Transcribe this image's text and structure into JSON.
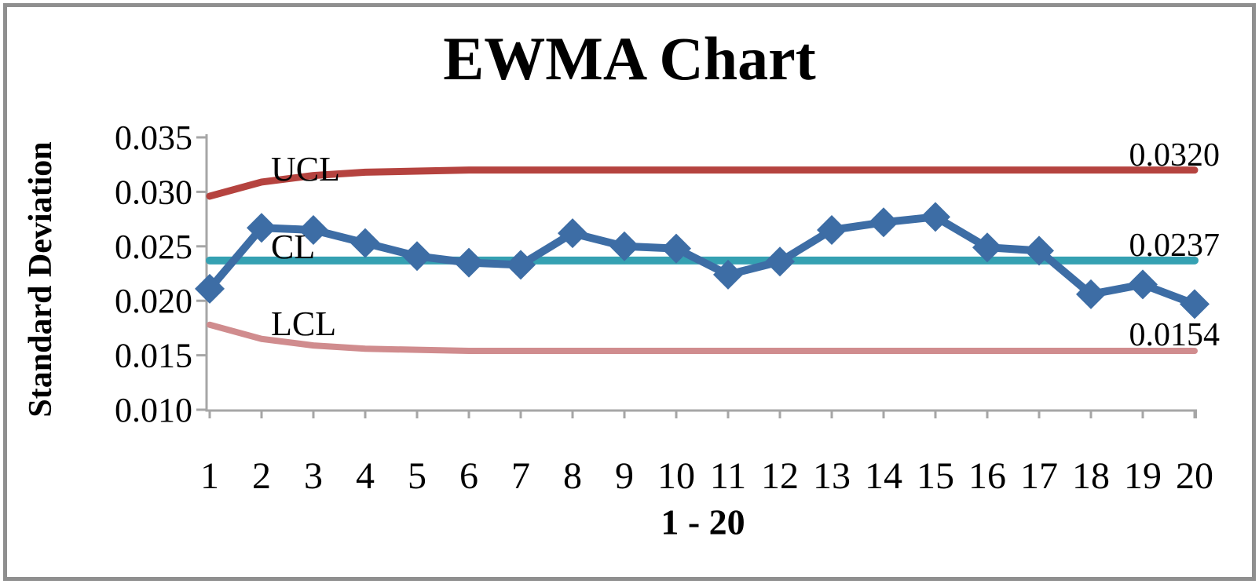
{
  "window": {
    "background_color": "#ffffff",
    "border_color": "#8f8f8f"
  },
  "chart_data": {
    "type": "line",
    "title": "EWMA Chart",
    "ylabel": "Standard Deviation",
    "xlabel": "1 - 20",
    "ylim": [
      0.01,
      0.035
    ],
    "y_tick_labels": [
      "0.035",
      "0.030",
      "0.025",
      "0.020",
      "0.015",
      "0.010"
    ],
    "y_tick_values": [
      0.035,
      0.03,
      0.025,
      0.02,
      0.015,
      0.01
    ],
    "categories": [
      1,
      2,
      3,
      4,
      5,
      6,
      7,
      8,
      9,
      10,
      11,
      12,
      13,
      14,
      15,
      16,
      17,
      18,
      19,
      20
    ],
    "x_tick_labels": [
      "1",
      "2",
      "3",
      "4",
      "5",
      "6",
      "7",
      "8",
      "9",
      "10",
      "11",
      "12",
      "13",
      "14",
      "15",
      "16",
      "17",
      "18",
      "19",
      "20"
    ],
    "grid": false,
    "legend": "none",
    "series": [
      {
        "name": "EWMA",
        "marker": "diamond",
        "color": "#3D6DA5",
        "values": [
          0.0211,
          0.0267,
          0.0265,
          0.0253,
          0.0241,
          0.0235,
          0.0233,
          0.0262,
          0.025,
          0.0248,
          0.0224,
          0.0236,
          0.0265,
          0.0272,
          0.0277,
          0.0249,
          0.0246,
          0.0206,
          0.0215,
          0.0197
        ]
      },
      {
        "name": "UCL",
        "marker": "none",
        "color": "#B5433F",
        "values": [
          0.0296,
          0.0309,
          0.0315,
          0.0318,
          0.0319,
          0.032,
          0.032,
          0.032,
          0.032,
          0.032,
          0.032,
          0.032,
          0.032,
          0.032,
          0.032,
          0.032,
          0.032,
          0.032,
          0.032,
          0.032
        ]
      },
      {
        "name": "CL",
        "marker": "none",
        "color": "#35A1B2",
        "values": [
          0.0237,
          0.0237,
          0.0237,
          0.0237,
          0.0237,
          0.0237,
          0.0237,
          0.0237,
          0.0237,
          0.0237,
          0.0237,
          0.0237,
          0.0237,
          0.0237,
          0.0237,
          0.0237,
          0.0237,
          0.0237,
          0.0237,
          0.0237
        ]
      },
      {
        "name": "LCL",
        "marker": "none",
        "color": "#D08C8E",
        "values": [
          0.0178,
          0.0165,
          0.0159,
          0.0156,
          0.0155,
          0.0154,
          0.0154,
          0.0154,
          0.0154,
          0.0154,
          0.0154,
          0.0154,
          0.0154,
          0.0154,
          0.0154,
          0.0154,
          0.0154,
          0.0154,
          0.0154,
          0.0154
        ]
      }
    ],
    "line_labels": {
      "ucl": "UCL",
      "cl": "CL",
      "lcl": "LCL"
    },
    "end_value_labels": {
      "ucl": "0.0320",
      "cl": "0.0237",
      "lcl": "0.0154"
    },
    "axis_color": "#A6A6A6"
  }
}
